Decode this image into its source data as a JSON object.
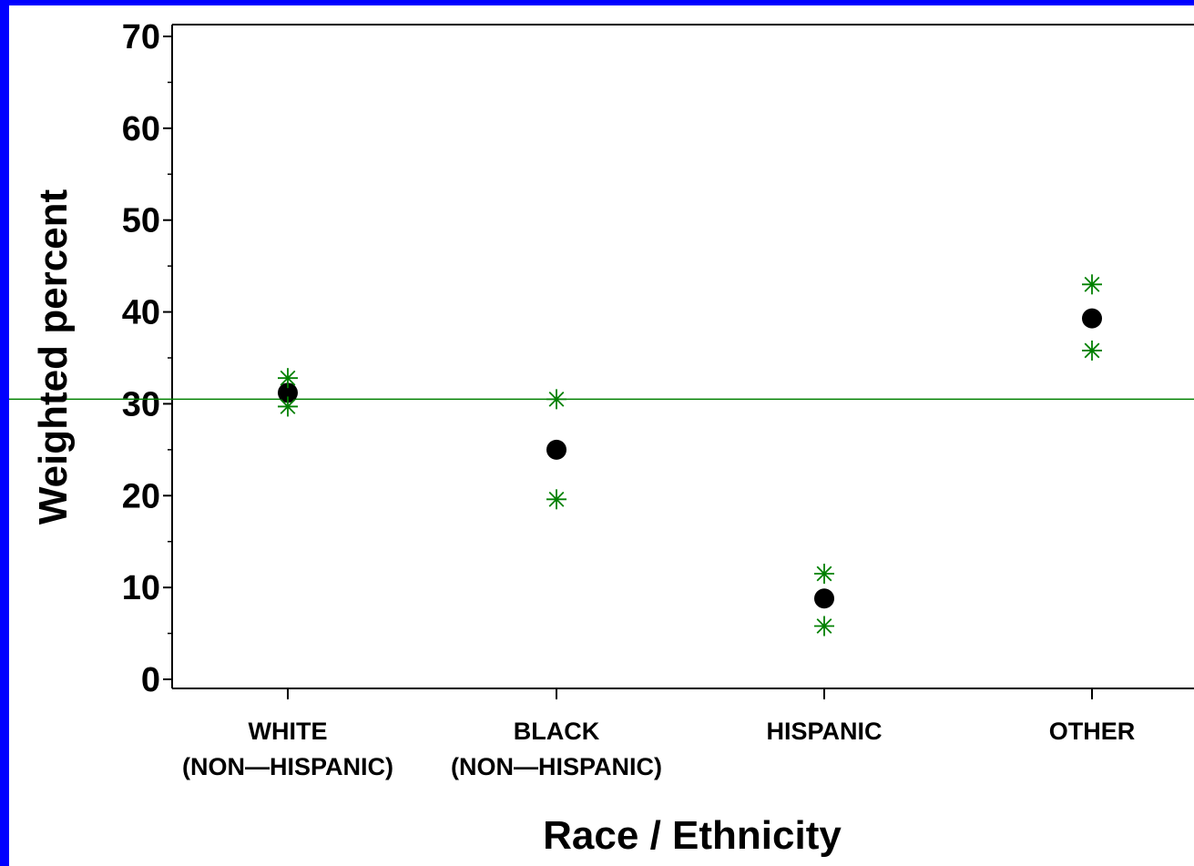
{
  "chart_data": {
    "type": "scatter",
    "xlabel": "Race / Ethnicity",
    "ylabel": "Weighted percent",
    "ylim": [
      0,
      70
    ],
    "yticks": [
      0,
      10,
      20,
      30,
      40,
      50,
      60,
      70
    ],
    "grid": false,
    "reference_line": {
      "y": 30.5,
      "color": "#008000"
    },
    "categories": [
      {
        "line1": "WHITE",
        "line2": "(NON—HISPANIC)"
      },
      {
        "line1": "BLACK",
        "line2": "(NON—HISPANIC)"
      },
      {
        "line1": "HISPANIC",
        "line2": ""
      },
      {
        "line1": "OTHER",
        "line2": ""
      }
    ],
    "series": [
      {
        "marker": "dot",
        "color": "#000000",
        "values": [
          31.2,
          25.0,
          8.8,
          39.3
        ]
      },
      {
        "marker": "asterisk",
        "color": "#008000",
        "values": [
          32.8,
          30.5,
          11.5,
          43.0
        ]
      },
      {
        "marker": "asterisk",
        "color": "#008000",
        "values": [
          29.7,
          19.6,
          5.8,
          35.8
        ]
      }
    ]
  }
}
